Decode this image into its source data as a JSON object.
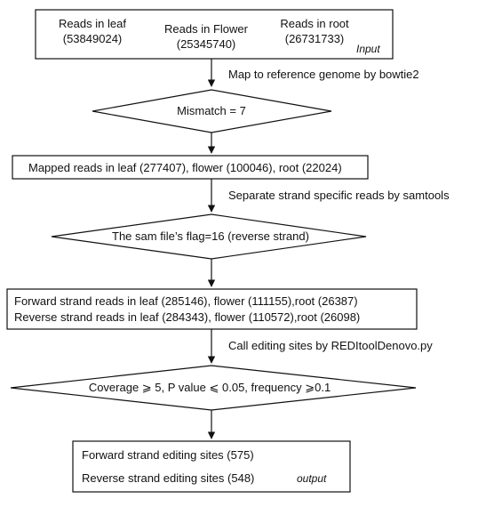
{
  "input_box": {
    "leaf_title": "Reads in leaf",
    "leaf_count": "(53849024)",
    "flower_title": "Reads in Flower",
    "flower_count": "(25345740)",
    "root_title": "Reads in root",
    "root_count": "(26731733)",
    "tag": "Input"
  },
  "step1_label": "Map to reference genome by bowtie2",
  "decision1": "Mismatch = 7",
  "mapped_box": "Mapped reads in leaf (277407), flower (100046), root (22024)",
  "step2_label": "Separate strand specific reads by samtools",
  "decision2": "The sam file’s flag=16 (reverse strand)",
  "strand_box": {
    "forward": "Forward strand reads in leaf (285146), flower (111155),root (26387)",
    "reverse": "Reverse strand reads in leaf (284343), flower (110572),root (26098)"
  },
  "step3_label": "Call editing sites by REDItoolDenovo.py",
  "decision3": "Coverage ⩾ 5, P value ⩽ 0.05, frequency ⩾0.1",
  "output_box": {
    "forward": "Forward strand editing sites (575)",
    "reverse": "Reverse strand editing sites (548)",
    "tag": "output"
  },
  "colors": {
    "line": "#111111",
    "fill": "#ffffff"
  }
}
